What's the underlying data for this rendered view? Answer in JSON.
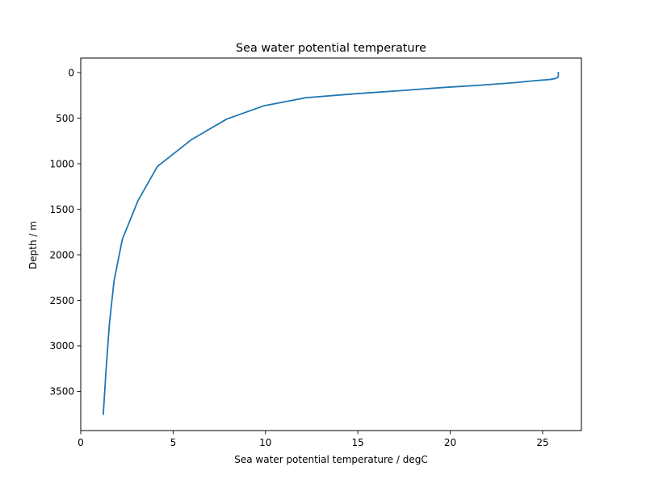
{
  "chart_data": {
    "type": "line",
    "title": "Sea water potential temperature",
    "xlabel": "Sea water potential temperature / degC",
    "ylabel": "Depth / m",
    "xlim": [
      0,
      27.1
    ],
    "ylim": [
      3930,
      -160
    ],
    "y_inverted": true,
    "grid": false,
    "legend": "none",
    "x_ticks": [
      0,
      5,
      10,
      15,
      20,
      25
    ],
    "y_ticks": [
      0,
      500,
      1000,
      1500,
      2000,
      2500,
      3000,
      3500
    ],
    "series": [
      {
        "color": "#1f77b4",
        "points": [
          [
            25.85,
            0
          ],
          [
            25.85,
            15
          ],
          [
            25.85,
            30
          ],
          [
            25.84,
            45
          ],
          [
            25.8,
            55
          ],
          [
            25.7,
            65
          ],
          [
            25.4,
            75
          ],
          [
            24.5,
            90
          ],
          [
            23.5,
            110
          ],
          [
            21.5,
            140
          ],
          [
            19.5,
            165
          ],
          [
            17.5,
            195
          ],
          [
            15.0,
            230
          ],
          [
            12.2,
            275
          ],
          [
            9.9,
            365
          ],
          [
            7.9,
            510
          ],
          [
            6.0,
            735
          ],
          [
            4.15,
            1030
          ],
          [
            3.1,
            1405
          ],
          [
            2.25,
            1830
          ],
          [
            1.8,
            2290
          ],
          [
            1.55,
            2760
          ],
          [
            1.38,
            3235
          ],
          [
            1.22,
            3750
          ]
        ]
      }
    ]
  }
}
